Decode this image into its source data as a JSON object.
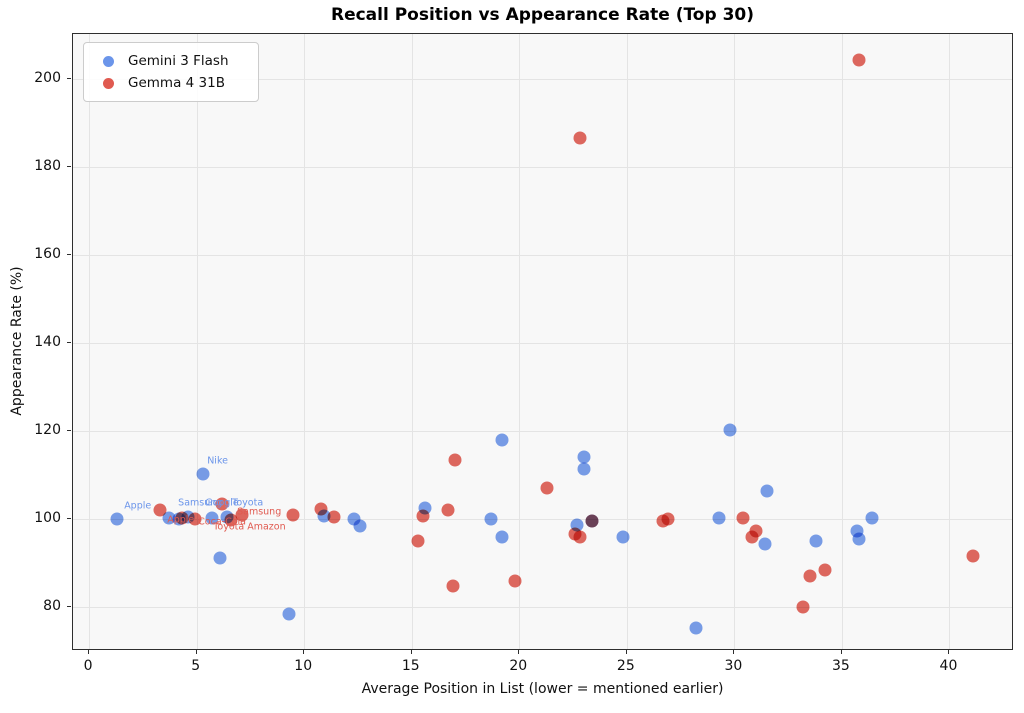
{
  "figure": {
    "title": "Recall Position vs Appearance Rate (Top 30)"
  },
  "chart_data": {
    "type": "scatter",
    "title": "Recall Position vs Appearance Rate (Top 30)",
    "xlabel": "Average Position in List (lower = mentioned earlier)",
    "ylabel": "Appearance Rate (%)",
    "xlim": [
      -0.75,
      43.0
    ],
    "ylim": [
      70.0,
      210.2
    ],
    "xticks": [
      0,
      5,
      10,
      15,
      20,
      25,
      30,
      35,
      40
    ],
    "yticks": [
      80,
      100,
      120,
      140,
      160,
      180,
      200
    ],
    "grid": true,
    "legend_position": "upper left",
    "series": [
      {
        "name": "Gemini 3 Flash",
        "color": "#6b95ea",
        "points": [
          [
            1.3,
            100.0
          ],
          [
            3.7,
            100.3
          ],
          [
            4.2,
            100.0
          ],
          [
            4.6,
            100.4
          ],
          [
            5.3,
            110.3
          ],
          [
            5.7,
            100.2
          ],
          [
            6.4,
            100.5
          ],
          [
            6.1,
            91.2
          ],
          [
            9.3,
            78.5
          ],
          [
            10.9,
            100.7
          ],
          [
            12.3,
            100.1
          ],
          [
            12.6,
            98.5
          ],
          [
            15.6,
            102.4
          ],
          [
            18.7,
            100.0
          ],
          [
            19.2,
            118.0
          ],
          [
            19.2,
            96.0
          ],
          [
            22.7,
            98.6
          ],
          [
            23.0,
            114.0
          ],
          [
            23.0,
            111.3
          ],
          [
            23.4,
            99.6
          ],
          [
            24.8,
            96.0
          ],
          [
            28.2,
            75.3
          ],
          [
            29.3,
            100.3
          ],
          [
            29.8,
            120.2
          ],
          [
            31.4,
            94.4
          ],
          [
            31.5,
            106.4
          ],
          [
            33.8,
            95.0
          ],
          [
            35.7,
            97.2
          ],
          [
            35.8,
            95.5
          ],
          [
            36.4,
            100.2
          ]
        ]
      },
      {
        "name": "Gemma 4 31B",
        "color": "#e05a50",
        "points": [
          [
            3.3,
            102.0
          ],
          [
            4.3,
            100.2
          ],
          [
            4.9,
            100.0
          ],
          [
            6.2,
            103.5
          ],
          [
            6.6,
            99.8
          ],
          [
            7.1,
            100.9
          ],
          [
            9.5,
            100.8
          ],
          [
            10.8,
            102.3
          ],
          [
            11.4,
            100.5
          ],
          [
            15.3,
            95.0
          ],
          [
            15.5,
            100.7
          ],
          [
            16.7,
            102.0
          ],
          [
            16.9,
            84.7
          ],
          [
            17.0,
            113.5
          ],
          [
            19.8,
            86.0
          ],
          [
            21.3,
            107.0
          ],
          [
            22.6,
            96.5
          ],
          [
            22.8,
            96.0
          ],
          [
            22.8,
            186.5
          ],
          [
            23.4,
            99.6
          ],
          [
            26.7,
            99.5
          ],
          [
            26.9,
            100.1
          ],
          [
            30.4,
            100.3
          ],
          [
            30.8,
            96.0
          ],
          [
            31.0,
            97.2
          ],
          [
            33.2,
            80.0
          ],
          [
            33.5,
            87.0
          ],
          [
            34.2,
            88.4
          ],
          [
            35.8,
            204.3
          ],
          [
            41.1,
            91.5
          ]
        ]
      }
    ],
    "annotations": [
      {
        "text": "Apple",
        "x": 1.63,
        "y": 103.0,
        "series": 0
      },
      {
        "text": "Samsung",
        "x": 4.14,
        "y": 103.6,
        "series": 0
      },
      {
        "text": "Google",
        "x": 5.4,
        "y": 103.6,
        "series": 0
      },
      {
        "text": "Toyota",
        "x": 6.65,
        "y": 103.6,
        "series": 0
      },
      {
        "text": "Nike",
        "x": 5.49,
        "y": 113.2,
        "series": 0
      },
      {
        "text": "Apple",
        "x": 3.63,
        "y": 99.8,
        "series": 1
      },
      {
        "text": "Coca-Cola",
        "x": 5.07,
        "y": 99.3,
        "series": 1
      },
      {
        "text": "Samsung",
        "x": 6.88,
        "y": 101.6,
        "series": 1
      },
      {
        "text": "Toyota",
        "x": 5.77,
        "y": 98.2,
        "series": 1
      },
      {
        "text": "Amazon",
        "x": 7.35,
        "y": 98.2,
        "series": 1
      }
    ]
  }
}
